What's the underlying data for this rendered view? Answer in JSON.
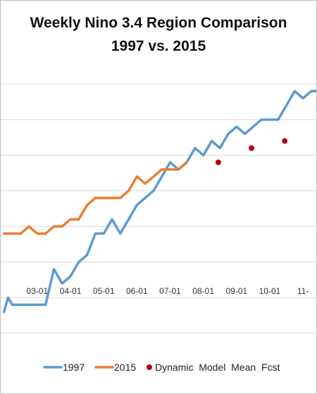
{
  "chart_data": {
    "type": "line",
    "title": "Weekly Nino 3.4 Region Comparison",
    "subtitle": "1997 vs. 2015",
    "x_tick_labels": [
      "03-01",
      "04-01",
      "05-01",
      "06-01",
      "07-01",
      "08-01",
      "09-01",
      "10-01",
      "11-"
    ],
    "x_tick_months": [
      3,
      4,
      5,
      6,
      7,
      8,
      9,
      10,
      11
    ],
    "xlim": [
      1.9,
      11.4
    ],
    "ylim": [
      -0.7,
      3.2
    ],
    "grid": "horizontal",
    "legend_position": "bottom",
    "series": [
      {
        "name": "1997",
        "color": "#5b9bd5",
        "kind": "line",
        "x": [
          2.0,
          2.12,
          2.25,
          2.5,
          2.75,
          3.0,
          3.25,
          3.5,
          3.75,
          4.0,
          4.25,
          4.5,
          4.75,
          5.0,
          5.25,
          5.5,
          5.75,
          6.0,
          6.25,
          6.5,
          6.75,
          7.0,
          7.25,
          7.5,
          7.75,
          8.0,
          8.25,
          8.5,
          8.75,
          9.0,
          9.25,
          9.5,
          9.75,
          10.0,
          10.25,
          10.5,
          10.75,
          11.0,
          11.25,
          11.4
        ],
        "y": [
          -0.2,
          0.0,
          -0.1,
          -0.1,
          -0.1,
          -0.1,
          -0.1,
          0.4,
          0.2,
          0.3,
          0.5,
          0.6,
          0.9,
          0.9,
          1.1,
          0.9,
          1.1,
          1.3,
          1.4,
          1.5,
          1.7,
          1.9,
          1.8,
          1.9,
          2.1,
          2.0,
          2.2,
          2.1,
          2.3,
          2.4,
          2.3,
          2.4,
          2.5,
          2.5,
          2.5,
          2.7,
          2.9,
          2.8,
          2.9,
          2.9
        ]
      },
      {
        "name": "2015",
        "color": "#ed7d31",
        "kind": "line",
        "x": [
          2.0,
          2.5,
          2.75,
          3.0,
          3.25,
          3.5,
          3.75,
          4.0,
          4.25,
          4.5,
          4.75,
          5.0,
          5.25,
          5.5,
          5.75,
          6.0,
          6.25,
          6.5,
          6.75,
          7.0,
          7.25,
          7.5
        ],
        "y": [
          0.9,
          0.9,
          1.0,
          0.9,
          0.9,
          1.0,
          1.0,
          1.1,
          1.1,
          1.3,
          1.4,
          1.4,
          1.4,
          1.4,
          1.5,
          1.7,
          1.6,
          1.7,
          1.8,
          1.8,
          1.8,
          1.9
        ]
      },
      {
        "name": "Dynamic  Model  Mean  Fcst",
        "color": "#c00000",
        "kind": "points",
        "x": [
          8.45,
          9.45,
          10.45
        ],
        "y": [
          1.9,
          2.1,
          2.2
        ]
      }
    ]
  }
}
